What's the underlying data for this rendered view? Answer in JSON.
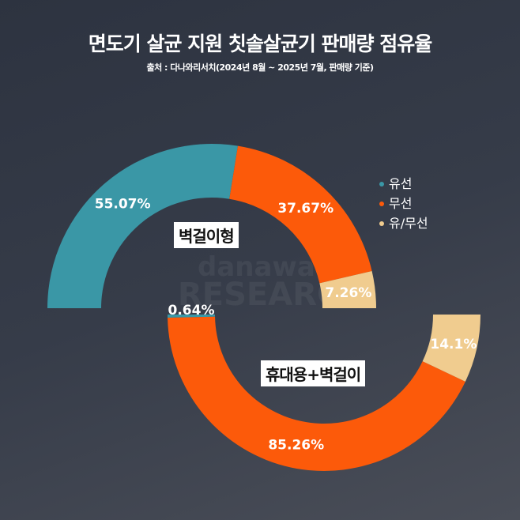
{
  "title": "면도기 살균 지원 칫솔살균기 판매량 점유율",
  "subtitle": "출처 : 다나와리서치(2024년 8월 ~ 2025년 7월, 판매량 기준)",
  "watermark": {
    "line1": "danawa",
    "line2": "RESEARCH"
  },
  "legend": [
    {
      "label": "유선",
      "color": "#3a97a6"
    },
    {
      "label": "무선",
      "color": "#fc5a0a"
    },
    {
      "label": "유/무선",
      "color": "#f0cc8f"
    }
  ],
  "chart_data": [
    {
      "type": "pie",
      "variant": "half-donut",
      "label": "벽걸이형",
      "categories": [
        "유선",
        "무선",
        "유/무선"
      ],
      "values": [
        55.07,
        37.67,
        7.26
      ],
      "data_labels": [
        "55.07%",
        "37.67%",
        "7.26%"
      ]
    },
    {
      "type": "pie",
      "variant": "half-donut",
      "label": "휴대용+벽걸이",
      "categories": [
        "유선",
        "무선",
        "유/무선"
      ],
      "values": [
        0.64,
        85.26,
        14.1
      ],
      "data_labels": [
        "0.64%",
        "85.26%",
        "14.1%"
      ]
    }
  ]
}
